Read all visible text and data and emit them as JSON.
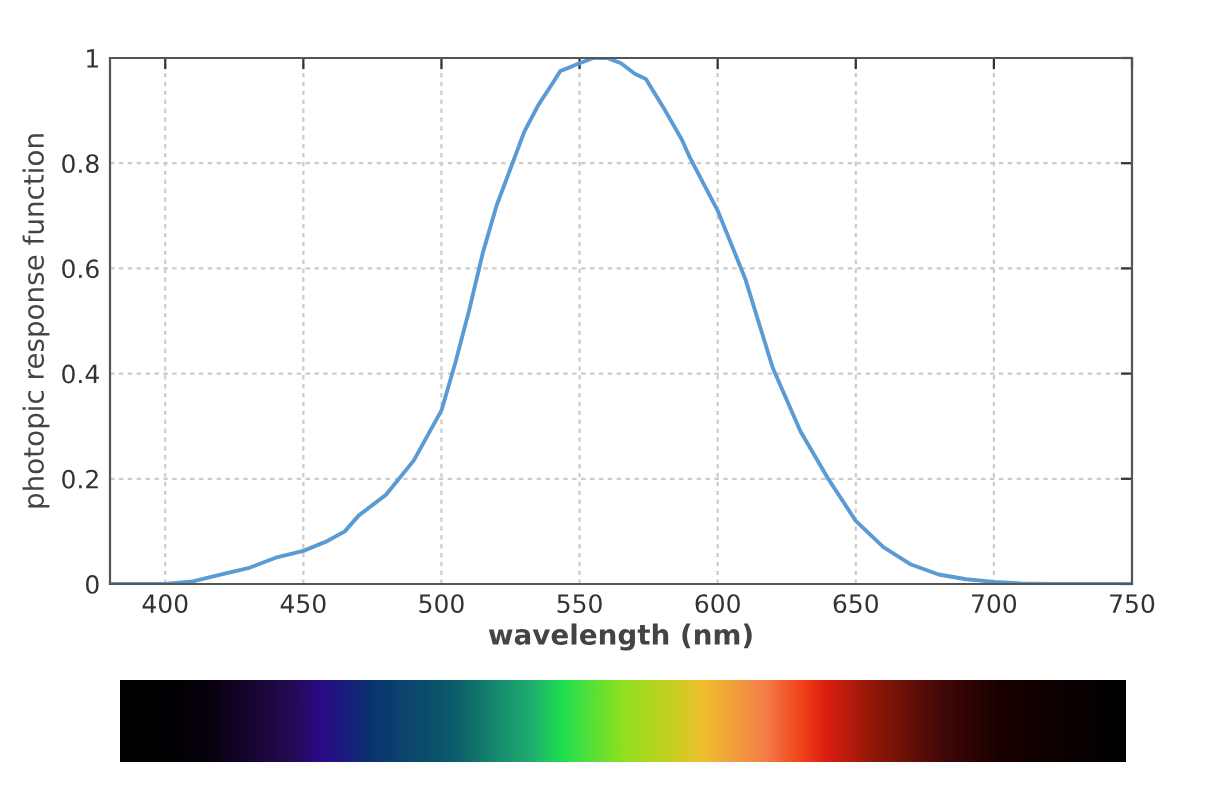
{
  "chart_data": {
    "type": "line",
    "xlabel": "wavelength (nm)",
    "ylabel": "photopic response function",
    "x": [
      380,
      400,
      410,
      420,
      430,
      440,
      450,
      458,
      465,
      470,
      480,
      490,
      500,
      505,
      510,
      515,
      520,
      525,
      530,
      535,
      540,
      543,
      550,
      555,
      560,
      565,
      570,
      574,
      581,
      587,
      590,
      600,
      610,
      620,
      630,
      640,
      650,
      660,
      670,
      680,
      690,
      700,
      710,
      720,
      750
    ],
    "series": [
      {
        "color": "#5b9bd5",
        "values": [
          0,
          0,
          0.005,
          0.018,
          0.03,
          0.05,
          0.063,
          0.08,
          0.1,
          0.13,
          0.17,
          0.235,
          0.33,
          0.42,
          0.52,
          0.63,
          0.72,
          0.79,
          0.86,
          0.91,
          0.95,
          0.975,
          0.99,
          1.0,
          1.0,
          0.99,
          0.97,
          0.96,
          0.9,
          0.845,
          0.81,
          0.71,
          0.58,
          0.41,
          0.29,
          0.2,
          0.12,
          0.07,
          0.037,
          0.018,
          0.009,
          0.004,
          0.001,
          0,
          0
        ]
      }
    ],
    "xlim": [
      380,
      750
    ],
    "xticks": [
      400,
      450,
      500,
      550,
      600,
      650,
      700,
      750
    ],
    "ylim": [
      0,
      1
    ],
    "yticks": [
      0,
      0.2,
      0.4,
      0.6,
      0.8,
      1
    ],
    "grid": true,
    "marker": "none",
    "line_style": "solid"
  }
}
